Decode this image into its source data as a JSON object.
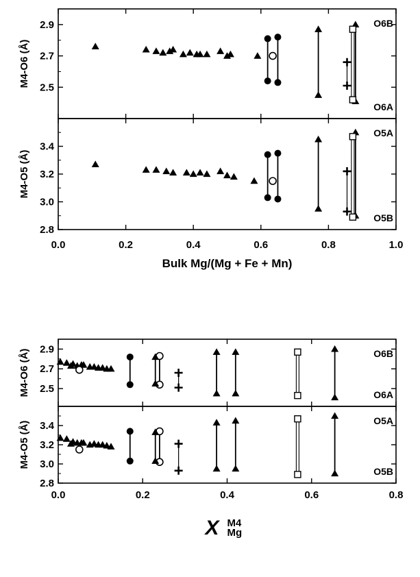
{
  "chart_data": [
    {
      "type": "scatter",
      "title": "",
      "xlabel": "Bulk Mg/(Mg + Fe + Mn)",
      "xlim": [
        0.0,
        1.0
      ],
      "xticks": [
        "0.0",
        "0.2",
        "0.4",
        "0.6",
        "0.8",
        "1.0"
      ],
      "panels": [
        {
          "ylabel": "M4-O6 (Å)",
          "ylim": [
            2.3,
            3.0
          ],
          "yticks": [
            "2.5",
            "2.7",
            "2.9"
          ],
          "site_labels": [
            "O6B",
            "O6A"
          ],
          "series": [
            {
              "marker": "triangle",
              "points": [
                [
                  0.11,
                  2.76
                ],
                [
                  0.26,
                  2.74
                ],
                [
                  0.29,
                  2.73
                ],
                [
                  0.31,
                  2.72
                ],
                [
                  0.33,
                  2.73
                ],
                [
                  0.34,
                  2.74
                ],
                [
                  0.37,
                  2.71
                ],
                [
                  0.39,
                  2.72
                ],
                [
                  0.41,
                  2.71
                ],
                [
                  0.42,
                  2.71
                ],
                [
                  0.44,
                  2.71
                ],
                [
                  0.48,
                  2.73
                ],
                [
                  0.5,
                  2.7
                ],
                [
                  0.51,
                  2.71
                ],
                [
                  0.59,
                  2.7
                ]
              ]
            },
            {
              "marker": "filled-circle",
              "points": [
                [
                  0.62,
                  2.81
                ],
                [
                  0.62,
                  2.54
                ],
                [
                  0.65,
                  2.82
                ],
                [
                  0.65,
                  2.53
                ]
              ]
            },
            {
              "marker": "open-circle",
              "points": [
                [
                  0.635,
                  2.7
                ]
              ]
            },
            {
              "marker": "plus",
              "points": [
                [
                  0.855,
                  2.66
                ],
                [
                  0.855,
                  2.51
                ]
              ]
            },
            {
              "marker": "triangle",
              "points": [
                [
                  0.77,
                  2.87
                ],
                [
                  0.77,
                  2.45
                ],
                [
                  0.88,
                  2.9
                ],
                [
                  0.88,
                  2.41
                ]
              ]
            },
            {
              "marker": "open-square",
              "points": [
                [
                  0.872,
                  2.87
                ],
                [
                  0.872,
                  2.42
                ]
              ]
            }
          ],
          "ranges": [
            {
              "marker": "filled-circle",
              "x": 0.62,
              "low": 2.54,
              "high": 2.81
            },
            {
              "marker": "filled-circle",
              "x": 0.65,
              "low": 2.53,
              "high": 2.82
            },
            {
              "marker": "triangle",
              "x": 0.77,
              "low": 2.45,
              "high": 2.87
            },
            {
              "marker": "plus",
              "x": 0.855,
              "low": 2.51,
              "high": 2.66
            },
            {
              "marker": "open-square",
              "x": 0.872,
              "low": 2.42,
              "high": 2.87
            },
            {
              "marker": "triangle",
              "x": 0.88,
              "low": 2.41,
              "high": 2.9
            }
          ]
        },
        {
          "ylabel": "M4-O5 (Å)",
          "ylim": [
            2.8,
            3.6
          ],
          "yticks": [
            "2.8",
            "3.0",
            "3.2",
            "3.4"
          ],
          "site_labels": [
            "O5A",
            "O5B"
          ],
          "series": [
            {
              "marker": "triangle",
              "points": [
                [
                  0.11,
                  3.27
                ],
                [
                  0.26,
                  3.23
                ],
                [
                  0.29,
                  3.23
                ],
                [
                  0.32,
                  3.22
                ],
                [
                  0.34,
                  3.21
                ],
                [
                  0.38,
                  3.21
                ],
                [
                  0.4,
                  3.2
                ],
                [
                  0.42,
                  3.21
                ],
                [
                  0.44,
                  3.2
                ],
                [
                  0.48,
                  3.22
                ],
                [
                  0.5,
                  3.19
                ],
                [
                  0.52,
                  3.18
                ],
                [
                  0.58,
                  3.15
                ]
              ]
            },
            {
              "marker": "filled-circle",
              "points": [
                [
                  0.62,
                  3.34
                ],
                [
                  0.62,
                  3.03
                ],
                [
                  0.65,
                  3.35
                ],
                [
                  0.65,
                  3.02
                ]
              ]
            },
            {
              "marker": "open-circle",
              "points": [
                [
                  0.635,
                  3.15
                ]
              ]
            },
            {
              "marker": "plus",
              "points": [
                [
                  0.855,
                  3.22
                ],
                [
                  0.855,
                  2.93
                ]
              ]
            },
            {
              "marker": "triangle",
              "points": [
                [
                  0.77,
                  3.45
                ],
                [
                  0.77,
                  2.95
                ],
                [
                  0.88,
                  3.5
                ],
                [
                  0.88,
                  2.9
                ]
              ]
            },
            {
              "marker": "open-square",
              "points": [
                [
                  0.872,
                  3.47
                ],
                [
                  0.872,
                  2.89
                ]
              ]
            }
          ],
          "ranges": [
            {
              "marker": "filled-circle",
              "x": 0.62,
              "low": 3.03,
              "high": 3.34
            },
            {
              "marker": "filled-circle",
              "x": 0.65,
              "low": 3.02,
              "high": 3.35
            },
            {
              "marker": "triangle",
              "x": 0.77,
              "low": 2.95,
              "high": 3.45
            },
            {
              "marker": "plus",
              "x": 0.855,
              "low": 2.93,
              "high": 3.22
            },
            {
              "marker": "open-square",
              "x": 0.872,
              "low": 2.89,
              "high": 3.47
            },
            {
              "marker": "triangle",
              "x": 0.88,
              "low": 2.9,
              "high": 3.5
            }
          ]
        }
      ]
    },
    {
      "type": "scatter",
      "title": "",
      "xlabel": "X",
      "xlabel_super": "M4",
      "xlabel_sub": "Mg",
      "xlim": [
        0.0,
        0.8
      ],
      "xticks": [
        "0.0",
        "0.2",
        "0.4",
        "0.6",
        "0.8"
      ],
      "panels": [
        {
          "ylabel": "M4-O6 (Å)",
          "ylim": [
            2.32,
            3.0
          ],
          "yticks": [
            "2.5",
            "2.7",
            "2.9"
          ],
          "site_labels": [
            "O6B",
            "O6A"
          ],
          "series": [
            {
              "marker": "triangle",
              "points": [
                [
                  0.005,
                  2.77
                ],
                [
                  0.02,
                  2.76
                ],
                [
                  0.03,
                  2.73
                ],
                [
                  0.035,
                  2.75
                ],
                [
                  0.045,
                  2.73
                ],
                [
                  0.055,
                  2.74
                ],
                [
                  0.06,
                  2.74
                ],
                [
                  0.075,
                  2.72
                ],
                [
                  0.085,
                  2.72
                ],
                [
                  0.095,
                  2.71
                ],
                [
                  0.105,
                  2.71
                ],
                [
                  0.115,
                  2.7
                ],
                [
                  0.125,
                  2.7
                ]
              ]
            },
            {
              "marker": "open-circle",
              "points": [
                [
                  0.05,
                  2.69
                ],
                [
                  0.24,
                  2.83
                ],
                [
                  0.24,
                  2.54
                ]
              ]
            },
            {
              "marker": "filled-circle",
              "points": [
                [
                  0.17,
                  2.82
                ],
                [
                  0.17,
                  2.54
                ]
              ]
            },
            {
              "marker": "triangle",
              "points": [
                [
                  0.23,
                  2.82
                ],
                [
                  0.23,
                  2.55
                ],
                [
                  0.375,
                  2.87
                ],
                [
                  0.375,
                  2.45
                ],
                [
                  0.42,
                  2.87
                ],
                [
                  0.42,
                  2.45
                ],
                [
                  0.655,
                  2.9
                ],
                [
                  0.655,
                  2.41
                ]
              ]
            },
            {
              "marker": "plus",
              "points": [
                [
                  0.285,
                  2.66
                ],
                [
                  0.285,
                  2.51
                ]
              ]
            },
            {
              "marker": "open-square",
              "points": [
                [
                  0.567,
                  2.87
                ],
                [
                  0.567,
                  2.43
                ]
              ]
            }
          ],
          "ranges": [
            {
              "marker": "filled-circle",
              "x": 0.17,
              "low": 2.54,
              "high": 2.82
            },
            {
              "marker": "triangle",
              "x": 0.23,
              "low": 2.55,
              "high": 2.82
            },
            {
              "marker": "open-circle",
              "x": 0.24,
              "low": 2.54,
              "high": 2.83
            },
            {
              "marker": "plus",
              "x": 0.285,
              "low": 2.51,
              "high": 2.66
            },
            {
              "marker": "triangle",
              "x": 0.375,
              "low": 2.45,
              "high": 2.87
            },
            {
              "marker": "triangle",
              "x": 0.42,
              "low": 2.45,
              "high": 2.87
            },
            {
              "marker": "open-square",
              "x": 0.567,
              "low": 2.43,
              "high": 2.87
            },
            {
              "marker": "triangle",
              "x": 0.655,
              "low": 2.41,
              "high": 2.9
            }
          ]
        },
        {
          "ylabel": "M4-O5 (Å)",
          "ylim": [
            2.8,
            3.6
          ],
          "yticks": [
            "2.8",
            "3.0",
            "3.2",
            "3.4"
          ],
          "site_labels": [
            "O5A",
            "O5B"
          ],
          "series": [
            {
              "marker": "triangle",
              "points": [
                [
                  0.005,
                  3.27
                ],
                [
                  0.02,
                  3.26
                ],
                [
                  0.03,
                  3.21
                ],
                [
                  0.035,
                  3.23
                ],
                [
                  0.045,
                  3.22
                ],
                [
                  0.055,
                  3.22
                ],
                [
                  0.06,
                  3.22
                ],
                [
                  0.075,
                  3.2
                ],
                [
                  0.085,
                  3.21
                ],
                [
                  0.095,
                  3.2
                ],
                [
                  0.105,
                  3.2
                ],
                [
                  0.115,
                  3.19
                ],
                [
                  0.125,
                  3.18
                ]
              ]
            },
            {
              "marker": "open-circle",
              "points": [
                [
                  0.05,
                  3.15
                ],
                [
                  0.24,
                  3.34
                ],
                [
                  0.24,
                  3.02
                ]
              ]
            },
            {
              "marker": "filled-circle",
              "points": [
                [
                  0.17,
                  3.34
                ],
                [
                  0.17,
                  3.03
                ]
              ]
            },
            {
              "marker": "triangle",
              "points": [
                [
                  0.23,
                  3.33
                ],
                [
                  0.23,
                  3.03
                ],
                [
                  0.375,
                  3.43
                ],
                [
                  0.375,
                  2.95
                ],
                [
                  0.42,
                  3.45
                ],
                [
                  0.42,
                  2.95
                ],
                [
                  0.655,
                  3.5
                ],
                [
                  0.655,
                  2.9
                ]
              ]
            },
            {
              "marker": "plus",
              "points": [
                [
                  0.285,
                  3.21
                ],
                [
                  0.285,
                  2.93
                ]
              ]
            },
            {
              "marker": "open-square",
              "points": [
                [
                  0.567,
                  3.47
                ],
                [
                  0.567,
                  2.89
                ]
              ]
            }
          ],
          "ranges": [
            {
              "marker": "filled-circle",
              "x": 0.17,
              "low": 3.03,
              "high": 3.34
            },
            {
              "marker": "triangle",
              "x": 0.23,
              "low": 3.03,
              "high": 3.33
            },
            {
              "marker": "open-circle",
              "x": 0.24,
              "low": 3.02,
              "high": 3.34
            },
            {
              "marker": "plus",
              "x": 0.285,
              "low": 2.93,
              "high": 3.21
            },
            {
              "marker": "triangle",
              "x": 0.375,
              "low": 2.95,
              "high": 3.43
            },
            {
              "marker": "triangle",
              "x": 0.42,
              "low": 2.95,
              "high": 3.45
            },
            {
              "marker": "open-square",
              "x": 0.567,
              "low": 2.89,
              "high": 3.47
            },
            {
              "marker": "triangle",
              "x": 0.655,
              "low": 2.9,
              "high": 3.5
            }
          ]
        }
      ]
    }
  ]
}
